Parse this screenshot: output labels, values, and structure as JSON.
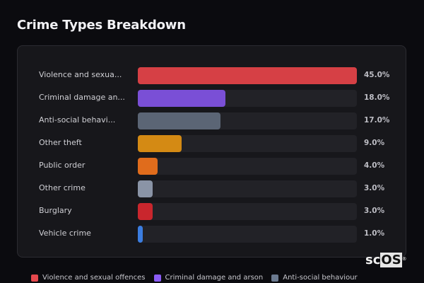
{
  "title": "Crime Types Breakdown",
  "rows": [
    {
      "label": "Violence and sexua...",
      "pct": "45.0%",
      "value": 45.0,
      "color": "#d64045"
    },
    {
      "label": "Criminal damage an...",
      "pct": "18.0%",
      "value": 18.0,
      "color": "#7a4fd6"
    },
    {
      "label": "Anti-social behavi...",
      "pct": "17.0%",
      "value": 17.0,
      "color": "#5b6575"
    },
    {
      "label": "Other theft",
      "pct": "9.0%",
      "value": 9.0,
      "color": "#d48a14"
    },
    {
      "label": "Public order",
      "pct": "4.0%",
      "value": 4.0,
      "color": "#e06c1c"
    },
    {
      "label": "Other crime",
      "pct": "3.0%",
      "value": 3.0,
      "color": "#8a94a6"
    },
    {
      "label": "Burglary",
      "pct": "3.0%",
      "value": 3.0,
      "color": "#c9262d"
    },
    {
      "label": "Vehicle crime",
      "pct": "1.0%",
      "value": 1.0,
      "color": "#3b7de0"
    }
  ],
  "legend": [
    {
      "label": "Violence and sexual offences",
      "color": "#e5484d"
    },
    {
      "label": "Criminal damage and arson",
      "color": "#8b5cf6"
    },
    {
      "label": "Anti-social behaviour",
      "color": "#6b7a90"
    }
  ],
  "logo": {
    "sc": "sc",
    "os": "OS",
    "reg": "®"
  },
  "chart_data": {
    "type": "bar",
    "orientation": "horizontal",
    "title": "Crime Types Breakdown",
    "categories": [
      "Violence and sexual offences",
      "Criminal damage and arson",
      "Anti-social behaviour",
      "Other theft",
      "Public order",
      "Other crime",
      "Burglary",
      "Vehicle crime"
    ],
    "values": [
      45.0,
      18.0,
      17.0,
      9.0,
      4.0,
      3.0,
      3.0,
      1.0
    ],
    "value_labels": [
      "45.0%",
      "18.0%",
      "17.0%",
      "9.0%",
      "4.0%",
      "3.0%",
      "3.0%",
      "1.0%"
    ],
    "xlabel": "",
    "ylabel": "",
    "unit": "%",
    "grid": false,
    "legend_position": "bottom"
  }
}
